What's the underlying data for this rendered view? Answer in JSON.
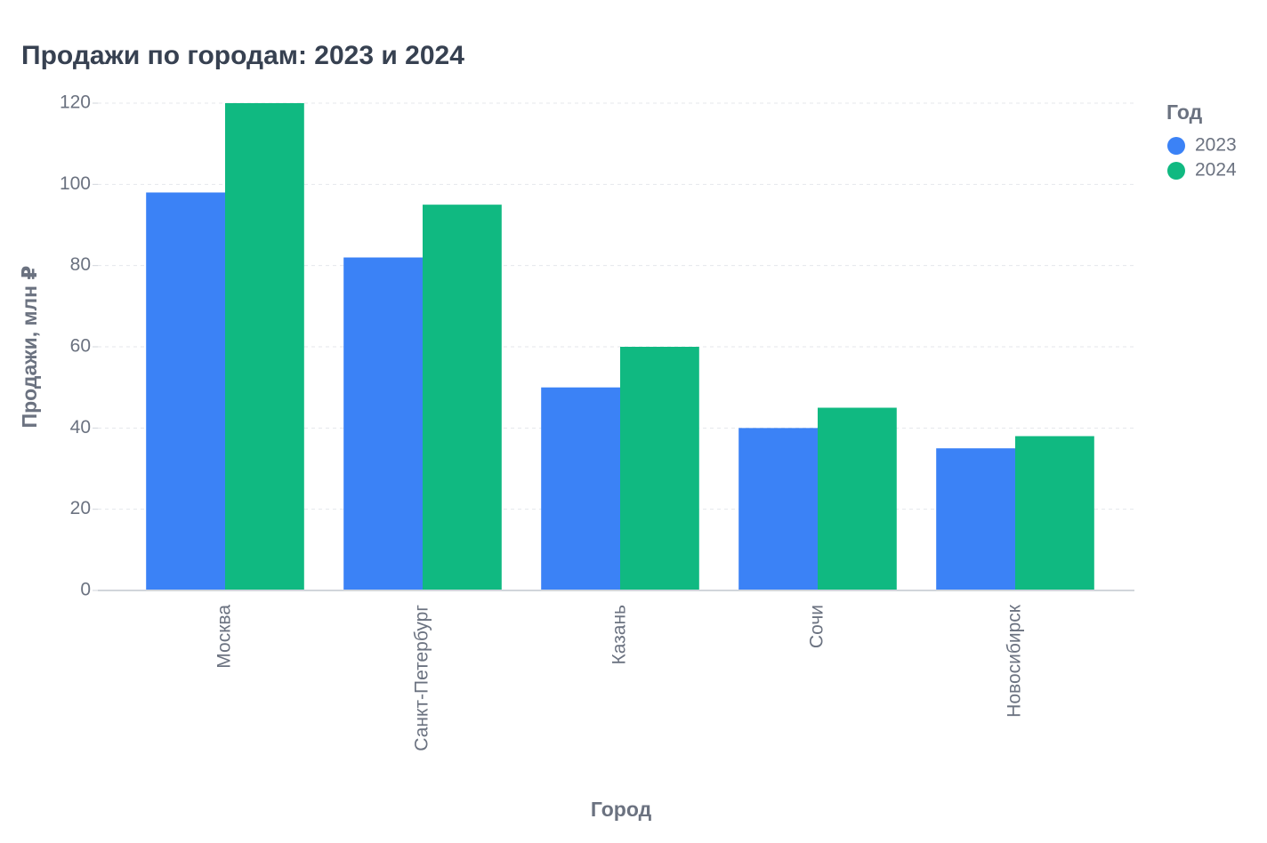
{
  "chart_data": {
    "type": "bar",
    "title": "Продажи по городам: 2023 и 2024",
    "x_label": "Город",
    "y_label": "Продажи, млн ₽",
    "legend_title": "Год",
    "categories": [
      "Москва",
      "Санкт-Петербург",
      "Казань",
      "Сочи",
      "Новосибирск"
    ],
    "series": [
      {
        "name": "2023",
        "color": "#3b82f6",
        "values": [
          98,
          82,
          50,
          40,
          35
        ]
      },
      {
        "name": "2024",
        "color": "#10b981",
        "values": [
          120,
          95,
          60,
          45,
          38
        ]
      }
    ],
    "ylim": [
      0,
      120
    ],
    "yticks": [
      0,
      20,
      40,
      60,
      80,
      100,
      120
    ],
    "grid": true,
    "legend": "right"
  }
}
